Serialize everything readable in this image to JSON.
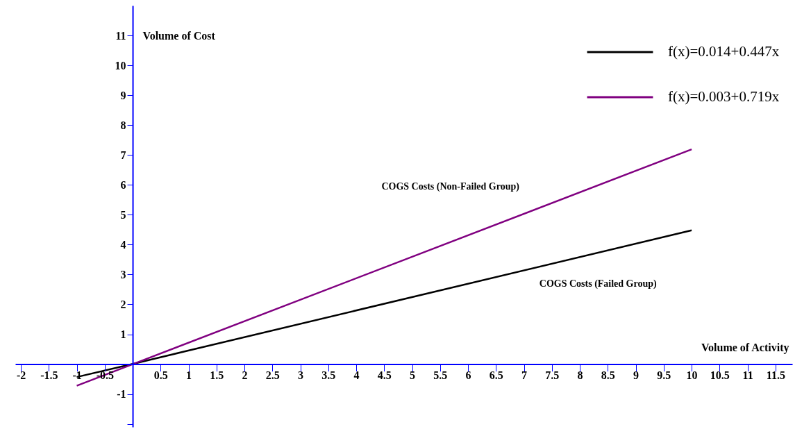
{
  "chart_data": {
    "type": "line",
    "xlabel": "Volume of Activity",
    "ylabel": "Volume of Cost",
    "xlim": [
      -2.1,
      11.8
    ],
    "ylim": [
      -2.1,
      12
    ],
    "xticks": [
      -2,
      -1.5,
      -1,
      -0.5,
      0.5,
      1,
      1.5,
      2,
      2.5,
      3,
      3.5,
      4,
      4.5,
      5,
      5.5,
      6,
      6.5,
      7,
      7.5,
      8,
      8.5,
      9,
      9.5,
      10,
      10.5,
      11,
      11.5
    ],
    "yticks": [
      {
        "value": -2,
        "label": null
      },
      -1,
      1,
      2,
      3,
      4,
      5,
      6,
      7,
      8,
      9,
      10,
      11
    ],
    "series": [
      {
        "name": "f(x)=0.014+0.447x",
        "color": "#000000",
        "x": [
          -1,
          0,
          10
        ],
        "values": [
          -0.43,
          0.01,
          4.48
        ]
      },
      {
        "name": "f(x)=0.003+0.719x",
        "color": "#800080",
        "x": [
          -1,
          0,
          10
        ],
        "values": [
          -0.72,
          0,
          7.19
        ]
      }
    ],
    "annotations": [
      "COGS Costs (Non-Failed Group)",
      "COGS Costs (Failed Group)"
    ],
    "legend": "top right",
    "grid": false,
    "marker": "none",
    "line_style": "solid"
  }
}
